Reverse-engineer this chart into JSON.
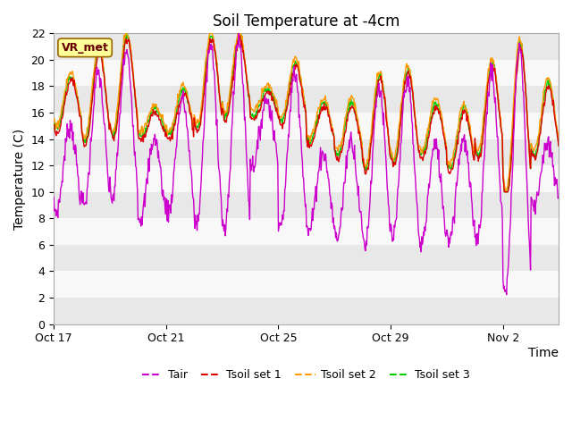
{
  "title": "Soil Temperature at -4cm",
  "xlabel": "Time",
  "ylabel": "Temperature (C)",
  "ylim": [
    0,
    22
  ],
  "yticks": [
    0,
    2,
    4,
    6,
    8,
    10,
    12,
    14,
    16,
    18,
    20,
    22
  ],
  "xtick_labels": [
    "Oct 17",
    "Oct 21",
    "Oct 25",
    "Oct 29",
    "Nov 2"
  ],
  "line_colors": {
    "Tair": "#cc00cc",
    "Tsoil set 1": "#dd0000",
    "Tsoil set 2": "#ff9900",
    "Tsoil set 3": "#00cc00"
  },
  "bg_color": "#ffffff",
  "plot_bg_color": "#ffffff",
  "band_even": "#e8e8e8",
  "band_odd": "#f8f8f8",
  "annotation_box": {
    "text": "VR_met",
    "facecolor": "#ffff99",
    "edgecolor": "#996600",
    "textcolor": "#660000"
  },
  "title_fontsize": 12,
  "label_fontsize": 10,
  "tick_fontsize": 9,
  "legend_fontsize": 9,
  "figsize": [
    6.4,
    4.8
  ],
  "dpi": 100
}
